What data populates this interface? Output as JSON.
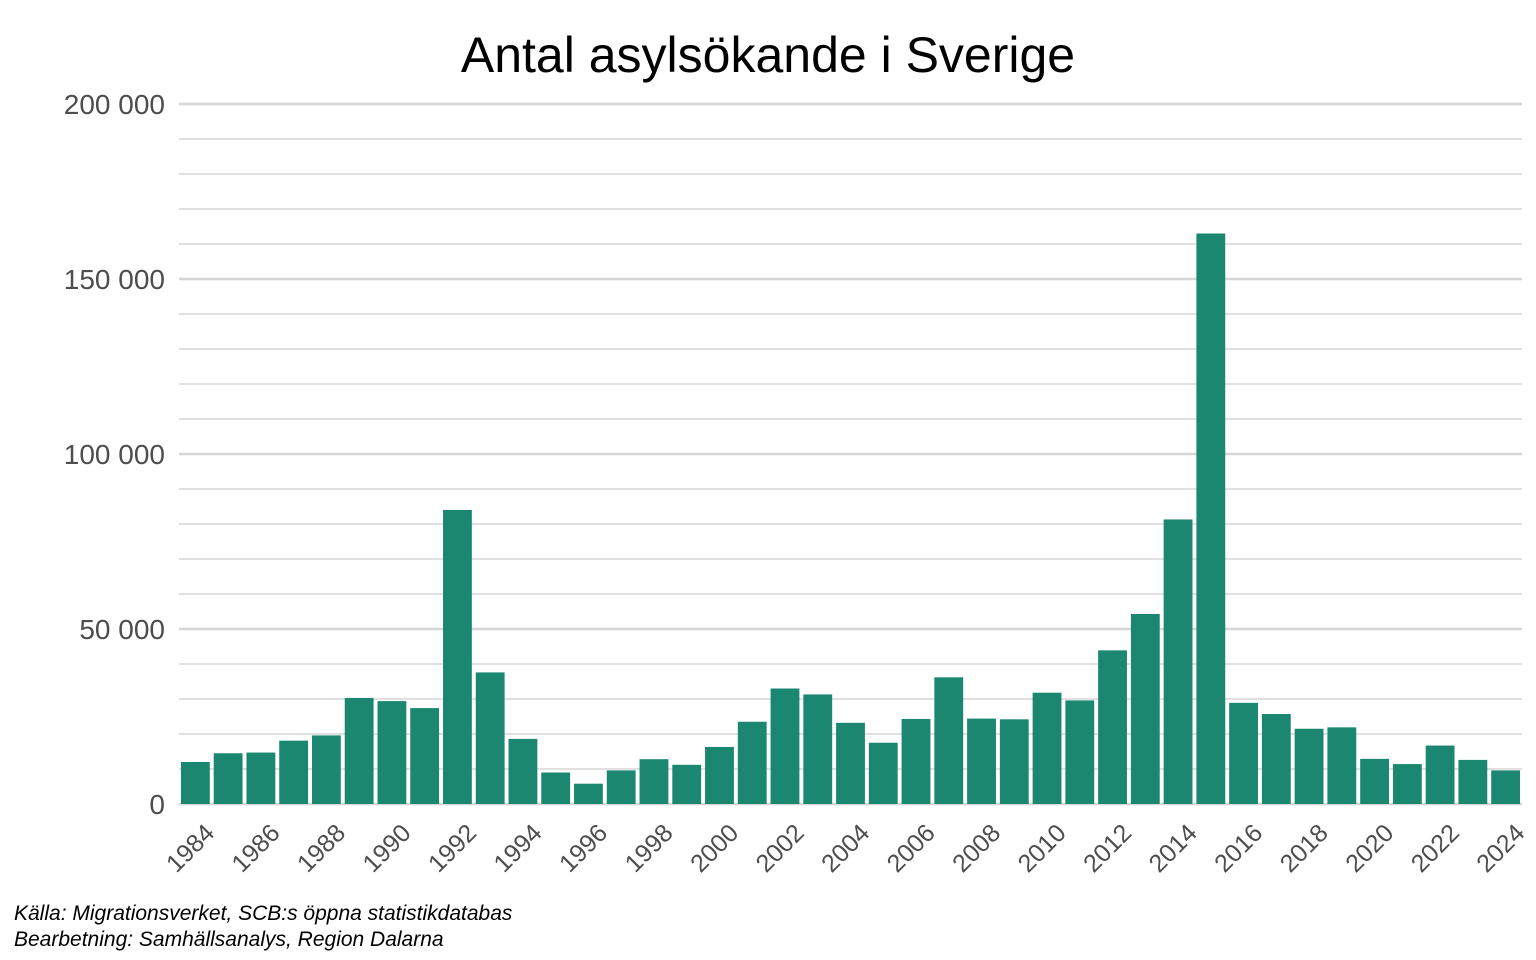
{
  "chart_data": {
    "type": "bar",
    "title": "Antal asylsökande  i Sverige",
    "xlabel": "",
    "ylabel": "",
    "x_tick_labels": [
      "1984",
      "1986",
      "1988",
      "1990",
      "1992",
      "1994",
      "1996",
      "1998",
      "2000",
      "2002",
      "2004",
      "2006",
      "2008",
      "2010",
      "2012",
      "2014",
      "2016",
      "2018",
      "2020",
      "2022",
      "2024"
    ],
    "y_tick_labels": [
      "0",
      "50 000",
      "100 000",
      "150 000",
      "200 000"
    ],
    "y_ticks": [
      0,
      50000,
      100000,
      150000,
      200000
    ],
    "ylim": [
      0,
      200000
    ],
    "grid": true,
    "legend": "none",
    "bar_color": "#1b8771",
    "categories": [
      "1984",
      "1985",
      "1986",
      "1987",
      "1988",
      "1989",
      "1990",
      "1991",
      "1992",
      "1993",
      "1994",
      "1995",
      "1996",
      "1997",
      "1998",
      "1999",
      "2000",
      "2001",
      "2002",
      "2003",
      "2004",
      "2005",
      "2006",
      "2007",
      "2008",
      "2009",
      "2010",
      "2011",
      "2012",
      "2013",
      "2014",
      "2015",
      "2016",
      "2017",
      "2018",
      "2019",
      "2020",
      "2021",
      "2022",
      "2023",
      "2024"
    ],
    "values": [
      12000,
      14500,
      14700,
      18100,
      19600,
      30300,
      29400,
      27400,
      84000,
      37600,
      18600,
      9000,
      5800,
      9600,
      12800,
      11200,
      16300,
      23500,
      33000,
      31300,
      23200,
      17500,
      24300,
      36200,
      24400,
      24200,
      31800,
      29600,
      43900,
      54300,
      81300,
      163000,
      28900,
      25700,
      21500,
      21900,
      12900,
      11400,
      16700,
      12600,
      9600
    ]
  },
  "captions": {
    "source": "Källa: Migrationsverket, SCB:s öppna statistikdatabas",
    "processing": "Bearbetning: Samhällsanalys, Region Dalarna"
  }
}
